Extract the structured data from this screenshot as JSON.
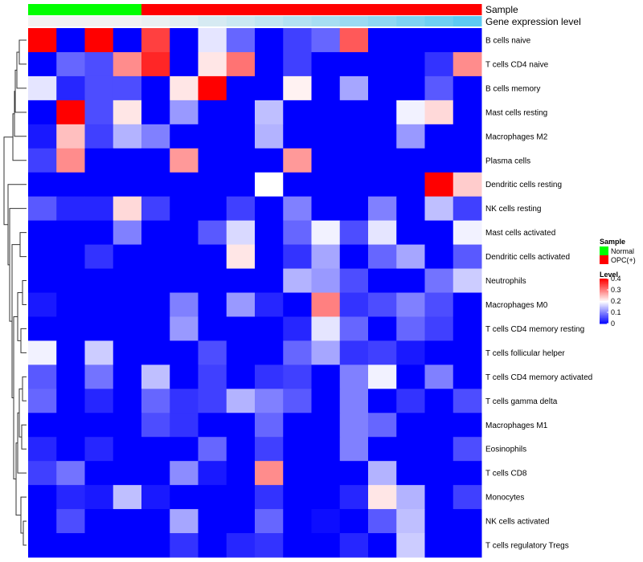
{
  "chart_data": {
    "type": "heatmap",
    "rows": [
      "B cells naive",
      "T cells CD4 naive",
      "B cells memory",
      "Mast cells resting",
      "Macrophages M2",
      "Plasma cells",
      "Dendritic cells resting",
      "NK cells resting",
      "Mast cells activated",
      "Dendritic cells activated",
      "Neutrophils",
      "Macrophages M0",
      "T cells CD4 memory resting",
      "T cells follicular helper",
      "T cells CD4 memory activated",
      "T cells gamma delta",
      "Macrophages M1",
      "Eosinophils",
      "T cells CD8",
      "Monocytes",
      "NK cells activated",
      "T cells regulatory  Tregs"
    ],
    "annotations": {
      "sample_label": "Sample",
      "expression_label": "Gene expression level",
      "sample": [
        "Normal",
        "Normal",
        "Normal",
        "Normal",
        "OPC(+)",
        "OPC(+)",
        "OPC(+)",
        "OPC(+)",
        "OPC(+)",
        "OPC(+)",
        "OPC(+)",
        "OPC(+)",
        "OPC(+)",
        "OPC(+)",
        "OPC(+)",
        "OPC(+)"
      ],
      "expression_level": [
        0.0,
        0.0,
        0.0,
        0.0,
        0.05,
        0.1,
        0.18,
        0.25,
        0.32,
        0.4,
        0.48,
        0.56,
        0.64,
        0.74,
        0.84,
        0.95
      ]
    },
    "values": [
      [
        0.4,
        0.0,
        0.4,
        0.0,
        0.35,
        0.0,
        0.18,
        0.08,
        0.0,
        0.05,
        0.08,
        0.33,
        0.0,
        0.0,
        0.0,
        0.0
      ],
      [
        0.0,
        0.08,
        0.06,
        0.29,
        0.37,
        0.0,
        0.22,
        0.31,
        0.0,
        0.05,
        0.0,
        0.0,
        0.0,
        0.0,
        0.04,
        0.29
      ],
      [
        0.18,
        0.03,
        0.06,
        0.06,
        0.0,
        0.22,
        0.4,
        0.0,
        0.0,
        0.21,
        0.0,
        0.13,
        0.0,
        0.0,
        0.07,
        0.0
      ],
      [
        0.0,
        0.4,
        0.06,
        0.22,
        0.0,
        0.12,
        0.0,
        0.0,
        0.15,
        0.0,
        0.0,
        0.0,
        0.0,
        0.19,
        0.23,
        0.0
      ],
      [
        0.02,
        0.25,
        0.05,
        0.14,
        0.1,
        0.0,
        0.0,
        0.0,
        0.14,
        0.0,
        0.0,
        0.0,
        0.0,
        0.12,
        0.0,
        0.0
      ],
      [
        0.05,
        0.29,
        0.0,
        0.0,
        0.0,
        0.28,
        0.0,
        0.0,
        0.0,
        0.28,
        0.0,
        0.0,
        0.0,
        0.0,
        0.0,
        0.0
      ],
      [
        0.0,
        0.0,
        0.0,
        0.0,
        0.0,
        0.0,
        0.0,
        0.0,
        0.2,
        0.0,
        0.0,
        0.0,
        0.0,
        0.0,
        0.4,
        0.24
      ],
      [
        0.07,
        0.03,
        0.03,
        0.23,
        0.05,
        0.0,
        0.0,
        0.05,
        0.0,
        0.1,
        0.0,
        0.0,
        0.1,
        0.0,
        0.15,
        0.05
      ],
      [
        0.0,
        0.0,
        0.0,
        0.1,
        0.0,
        0.0,
        0.07,
        0.17,
        0.0,
        0.08,
        0.19,
        0.06,
        0.18,
        0.0,
        0.0,
        0.19
      ],
      [
        0.0,
        0.0,
        0.04,
        0.0,
        0.0,
        0.0,
        0.0,
        0.22,
        0.0,
        0.04,
        0.13,
        0.0,
        0.08,
        0.13,
        0.0,
        0.07
      ],
      [
        0.0,
        0.0,
        0.0,
        0.0,
        0.0,
        0.0,
        0.0,
        0.0,
        0.0,
        0.14,
        0.12,
        0.06,
        0.0,
        0.0,
        0.09,
        0.16
      ],
      [
        0.02,
        0.0,
        0.0,
        0.0,
        0.0,
        0.1,
        0.0,
        0.12,
        0.03,
        0.0,
        0.3,
        0.04,
        0.06,
        0.1,
        0.06,
        0.0
      ],
      [
        0.0,
        0.0,
        0.0,
        0.0,
        0.0,
        0.12,
        0.0,
        0.0,
        0.0,
        0.03,
        0.18,
        0.08,
        0.0,
        0.08,
        0.05,
        0.0
      ],
      [
        0.19,
        0.0,
        0.16,
        0.0,
        0.0,
        0.0,
        0.06,
        0.0,
        0.0,
        0.08,
        0.13,
        0.04,
        0.05,
        0.02,
        0.0,
        0.0
      ],
      [
        0.07,
        0.0,
        0.09,
        0.0,
        0.15,
        0.0,
        0.05,
        0.0,
        0.04,
        0.05,
        0.0,
        0.1,
        0.19,
        0.0,
        0.1,
        0.0
      ],
      [
        0.08,
        0.0,
        0.03,
        0.0,
        0.08,
        0.04,
        0.05,
        0.14,
        0.1,
        0.07,
        0.0,
        0.1,
        0.0,
        0.04,
        0.0,
        0.06
      ],
      [
        0.0,
        0.0,
        0.0,
        0.0,
        0.06,
        0.04,
        0.0,
        0.0,
        0.08,
        0.0,
        0.0,
        0.1,
        0.08,
        0.0,
        0.0,
        0.0
      ],
      [
        0.03,
        0.0,
        0.03,
        0.0,
        0.0,
        0.0,
        0.08,
        0.0,
        0.05,
        0.0,
        0.0,
        0.1,
        0.0,
        0.0,
        0.0,
        0.06
      ],
      [
        0.05,
        0.09,
        0.0,
        0.0,
        0.0,
        0.11,
        0.02,
        0.0,
        0.29,
        0.0,
        0.0,
        0.0,
        0.14,
        0.0,
        0.0,
        0.0
      ],
      [
        0.0,
        0.03,
        0.02,
        0.15,
        0.02,
        0.0,
        0.0,
        0.0,
        0.04,
        0.0,
        0.0,
        0.03,
        0.22,
        0.14,
        0.0,
        0.05
      ],
      [
        0.0,
        0.06,
        0.0,
        0.0,
        0.0,
        0.13,
        0.0,
        0.0,
        0.08,
        0.0,
        0.01,
        0.0,
        0.07,
        0.15,
        0.0,
        0.0
      ],
      [
        0.0,
        0.0,
        0.0,
        0.0,
        0.0,
        0.04,
        0.0,
        0.03,
        0.04,
        0.0,
        0.0,
        0.03,
        0.0,
        0.16,
        0.0,
        0.0
      ]
    ],
    "colors": {
      "low": "#0000ff",
      "mid": "#ffffff",
      "high": "#ff0000",
      "normal": "#00ff00",
      "opc": "#ff0000",
      "expr_low": "#f2f2f2",
      "expr_high": "#55c8f2"
    },
    "legend": {
      "sample_title": "Sample",
      "sample_items": [
        "Normal",
        "OPC(+)"
      ],
      "level_title": "Level",
      "level_ticks": [
        "0.4",
        "0.3",
        "0.2",
        "0.1",
        "0"
      ],
      "level_values": [
        0.4,
        0.3,
        0.2,
        0.1,
        0
      ],
      "placement": "right"
    },
    "dendrogram": "rows",
    "range": [
      0,
      0.4
    ]
  }
}
